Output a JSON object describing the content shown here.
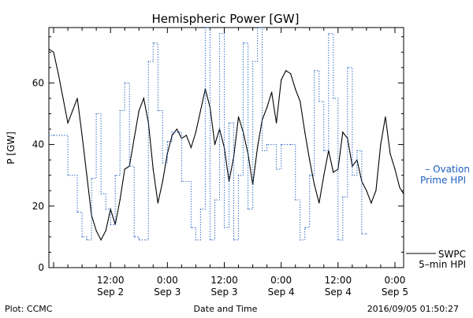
{
  "colors": {
    "swpc_line": "#000000",
    "ovation_line": "#1f5fbf",
    "axis": "#000000",
    "background": "#ffffff"
  },
  "chart_data": {
    "type": "line",
    "title": "Hemispheric Power [GW]",
    "xlabel": "Date and Time",
    "ylabel": "P [GW]",
    "ylim": [
      0,
      78
    ],
    "yticks": [
      0,
      20,
      40,
      60
    ],
    "xlim": [
      "2016-09-01 23:00",
      "2016-09-05 01:50"
    ],
    "xticks": [
      {
        "t": "2016-09-02 12:00",
        "time": "12:00",
        "date": "Sep 2"
      },
      {
        "t": "2016-09-03 00:00",
        "time": "0:00",
        "date": "Sep 3"
      },
      {
        "t": "2016-09-03 12:00",
        "time": "12:00",
        "date": "Sep 3"
      },
      {
        "t": "2016-09-04 00:00",
        "time": "0:00",
        "date": "Sep 4"
      },
      {
        "t": "2016-09-04 12:00",
        "time": "12:00",
        "date": "Sep 4"
      },
      {
        "t": "2016-09-05 00:00",
        "time": "0:00",
        "date": "Sep 5"
      }
    ],
    "grid": false,
    "legend_position": "right",
    "series": [
      {
        "name": "SWPC 5-min HPI",
        "style": "solid",
        "color": "#000000",
        "points": [
          [
            "2016-09-01 23:00",
            71
          ],
          [
            "2016-09-02 00:00",
            70
          ],
          [
            "2016-09-02 01:00",
            63
          ],
          [
            "2016-09-02 02:00",
            55
          ],
          [
            "2016-09-02 03:00",
            47
          ],
          [
            "2016-09-02 04:00",
            51
          ],
          [
            "2016-09-02 05:00",
            55
          ],
          [
            "2016-09-02 06:00",
            43
          ],
          [
            "2016-09-02 07:00",
            30
          ],
          [
            "2016-09-02 08:00",
            17
          ],
          [
            "2016-09-02 09:00",
            12
          ],
          [
            "2016-09-02 10:00",
            9
          ],
          [
            "2016-09-02 11:00",
            12
          ],
          [
            "2016-09-02 12:00",
            19
          ],
          [
            "2016-09-02 13:00",
            14
          ],
          [
            "2016-09-02 14:00",
            22
          ],
          [
            "2016-09-02 15:00",
            32
          ],
          [
            "2016-09-02 16:00",
            33
          ],
          [
            "2016-09-02 17:00",
            42
          ],
          [
            "2016-09-02 18:00",
            51
          ],
          [
            "2016-09-02 19:00",
            55
          ],
          [
            "2016-09-02 20:00",
            47
          ],
          [
            "2016-09-02 21:00",
            32
          ],
          [
            "2016-09-02 22:00",
            21
          ],
          [
            "2016-09-02 23:00",
            28
          ],
          [
            "2016-09-03 00:00",
            37
          ],
          [
            "2016-09-03 01:00",
            43
          ],
          [
            "2016-09-03 02:00",
            45
          ],
          [
            "2016-09-03 03:00",
            42
          ],
          [
            "2016-09-03 04:00",
            43
          ],
          [
            "2016-09-03 05:00",
            39
          ],
          [
            "2016-09-03 06:00",
            44
          ],
          [
            "2016-09-03 07:00",
            51
          ],
          [
            "2016-09-03 08:00",
            58
          ],
          [
            "2016-09-03 09:00",
            52
          ],
          [
            "2016-09-03 10:00",
            40
          ],
          [
            "2016-09-03 11:00",
            45
          ],
          [
            "2016-09-03 12:00",
            39
          ],
          [
            "2016-09-03 13:00",
            28
          ],
          [
            "2016-09-03 14:00",
            36
          ],
          [
            "2016-09-03 15:00",
            49
          ],
          [
            "2016-09-03 16:00",
            44
          ],
          [
            "2016-09-03 17:00",
            37
          ],
          [
            "2016-09-03 18:00",
            27
          ],
          [
            "2016-09-03 19:00",
            39
          ],
          [
            "2016-09-03 20:00",
            48
          ],
          [
            "2016-09-03 21:00",
            52
          ],
          [
            "2016-09-03 22:00",
            57
          ],
          [
            "2016-09-03 23:00",
            47
          ],
          [
            "2016-09-04 00:00",
            61
          ],
          [
            "2016-09-04 01:00",
            64
          ],
          [
            "2016-09-04 02:00",
            63
          ],
          [
            "2016-09-04 03:00",
            58
          ],
          [
            "2016-09-04 04:00",
            54
          ],
          [
            "2016-09-04 05:00",
            44
          ],
          [
            "2016-09-04 06:00",
            35
          ],
          [
            "2016-09-04 07:00",
            27
          ],
          [
            "2016-09-04 08:00",
            21
          ],
          [
            "2016-09-04 09:00",
            30
          ],
          [
            "2016-09-04 10:00",
            38
          ],
          [
            "2016-09-04 11:00",
            31
          ],
          [
            "2016-09-04 12:00",
            32
          ],
          [
            "2016-09-04 13:00",
            44
          ],
          [
            "2016-09-04 14:00",
            42
          ],
          [
            "2016-09-04 15:00",
            33
          ],
          [
            "2016-09-04 16:00",
            35
          ],
          [
            "2016-09-04 17:00",
            28
          ],
          [
            "2016-09-04 18:00",
            25
          ],
          [
            "2016-09-04 19:00",
            21
          ],
          [
            "2016-09-04 20:00",
            25
          ],
          [
            "2016-09-04 21:00",
            40
          ],
          [
            "2016-09-04 22:00",
            49
          ],
          [
            "2016-09-04 23:00",
            37
          ],
          [
            "2016-09-05 00:00",
            32
          ],
          [
            "2016-09-05 01:00",
            26
          ],
          [
            "2016-09-05 01:50",
            24
          ]
        ]
      },
      {
        "name": "Ovation Prime HPI",
        "style": "dotted",
        "color": "#1f5fbf",
        "points": [
          [
            "2016-09-01 23:00",
            43
          ],
          [
            "2016-09-02 00:00",
            43
          ],
          [
            "2016-09-02 03:00",
            30
          ],
          [
            "2016-09-02 05:00",
            18
          ],
          [
            "2016-09-02 06:00",
            10
          ],
          [
            "2016-09-02 07:00",
            9
          ],
          [
            "2016-09-02 08:00",
            29
          ],
          [
            "2016-09-02 09:00",
            50
          ],
          [
            "2016-09-02 10:00",
            24
          ],
          [
            "2016-09-02 11:00",
            19
          ],
          [
            "2016-09-02 12:00",
            14
          ],
          [
            "2016-09-02 13:00",
            30
          ],
          [
            "2016-09-02 14:00",
            51
          ],
          [
            "2016-09-02 15:00",
            60
          ],
          [
            "2016-09-02 16:00",
            33
          ],
          [
            "2016-09-02 17:00",
            10
          ],
          [
            "2016-09-02 18:00",
            9
          ],
          [
            "2016-09-02 20:00",
            67
          ],
          [
            "2016-09-02 21:00",
            73
          ],
          [
            "2016-09-02 22:00",
            51
          ],
          [
            "2016-09-02 23:00",
            34
          ],
          [
            "2016-09-03 00:00",
            41
          ],
          [
            "2016-09-03 01:00",
            44
          ],
          [
            "2016-09-03 03:00",
            28
          ],
          [
            "2016-09-03 05:00",
            13
          ],
          [
            "2016-09-03 06:00",
            9
          ],
          [
            "2016-09-03 07:00",
            19
          ],
          [
            "2016-09-03 08:00",
            78
          ],
          [
            "2016-09-03 09:00",
            9
          ],
          [
            "2016-09-03 10:00",
            22
          ],
          [
            "2016-09-03 11:00",
            76
          ],
          [
            "2016-09-03 12:00",
            13
          ],
          [
            "2016-09-03 13:00",
            47
          ],
          [
            "2016-09-03 14:00",
            9
          ],
          [
            "2016-09-03 15:00",
            30
          ],
          [
            "2016-09-03 16:00",
            73
          ],
          [
            "2016-09-03 17:00",
            19
          ],
          [
            "2016-09-03 18:00",
            67
          ],
          [
            "2016-09-03 19:00",
            78
          ],
          [
            "2016-09-03 20:00",
            38
          ],
          [
            "2016-09-03 21:00",
            40
          ],
          [
            "2016-09-03 23:00",
            32
          ],
          [
            "2016-09-04 00:00",
            40
          ],
          [
            "2016-09-04 02:00",
            40
          ],
          [
            "2016-09-04 03:00",
            22
          ],
          [
            "2016-09-04 04:00",
            9
          ],
          [
            "2016-09-04 05:00",
            13
          ],
          [
            "2016-09-04 06:00",
            30
          ],
          [
            "2016-09-04 07:00",
            64
          ],
          [
            "2016-09-04 08:00",
            54
          ],
          [
            "2016-09-04 09:00",
            38
          ],
          [
            "2016-09-04 10:00",
            76
          ],
          [
            "2016-09-04 11:00",
            55
          ],
          [
            "2016-09-04 12:00",
            9
          ],
          [
            "2016-09-04 13:00",
            23
          ],
          [
            "2016-09-04 14:00",
            65
          ],
          [
            "2016-09-04 15:00",
            30
          ],
          [
            "2016-09-04 16:00",
            38
          ],
          [
            "2016-09-04 17:00",
            11
          ],
          [
            "2016-09-04 18:00",
            11
          ]
        ]
      }
    ],
    "legend": [
      {
        "series": "Ovation Prime HPI",
        "lines": [
          "– Ovation",
          "Prime HPI"
        ]
      },
      {
        "series": "SWPC 5-min HPI",
        "lines": [
          "SWPC",
          "5–min HPI"
        ]
      }
    ]
  },
  "footer": {
    "left": "Plot: CCMC",
    "right": "2016/09/05 01:50:27"
  }
}
